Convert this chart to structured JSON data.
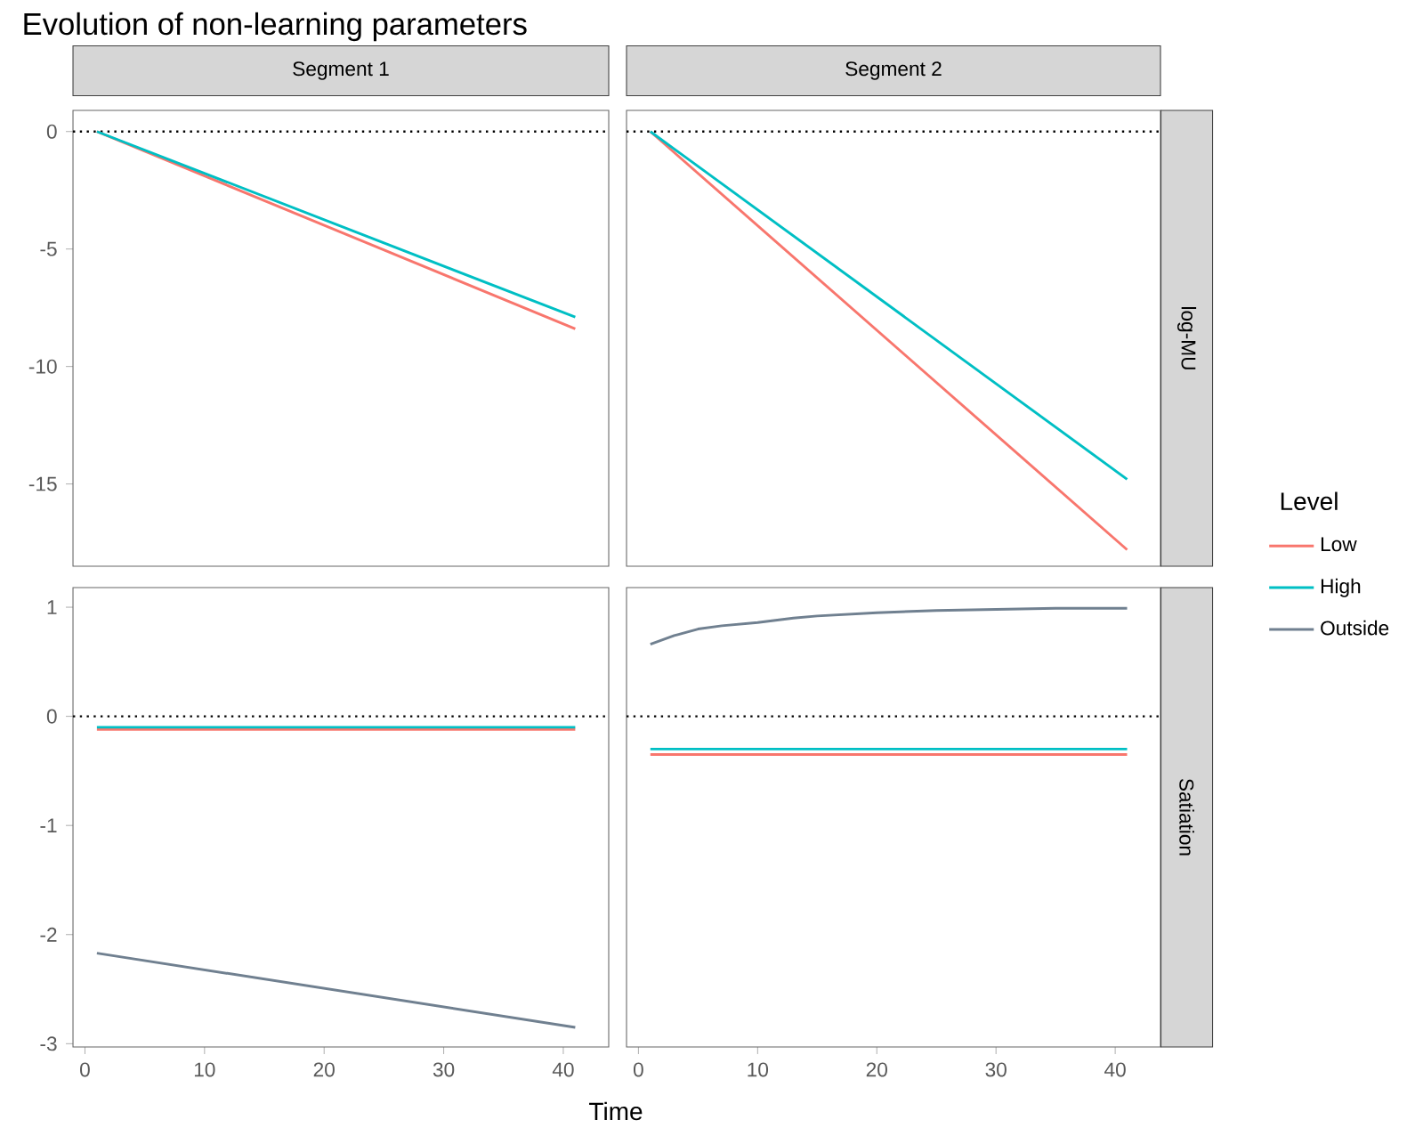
{
  "chart_data": [
    {
      "type": "line",
      "title": "Evolution of non-learning parameters",
      "subtitle": "Segment 1",
      "xlim": [
        -1,
        43.8
      ],
      "ylim": [
        -18.5,
        0.9
      ],
      "yticks": [
        0,
        -5,
        -10,
        -15
      ],
      "tick_labels": "y",
      "series": [
        {
          "color": "#f8766d",
          "x": [
            1,
            41
          ],
          "values": [
            0,
            -8.4
          ]
        },
        {
          "color": "#00bfc4",
          "x": [
            1,
            41
          ],
          "values": [
            0,
            -7.9
          ]
        }
      ],
      "ref_lines": [
        {
          "axis": "y",
          "value": 0,
          "color": "#000000",
          "line_style": "dotted"
        }
      ]
    },
    {
      "type": "line",
      "subtitle": "Segment 2",
      "y2label": "log-MU",
      "xlim": [
        -1,
        43.8
      ],
      "ylim": [
        -18.5,
        0.9
      ],
      "tick_labels": false,
      "series": [
        {
          "color": "#f8766d",
          "x": [
            1,
            41
          ],
          "values": [
            0,
            -17.8
          ]
        },
        {
          "color": "#00bfc4",
          "x": [
            1,
            41
          ],
          "values": [
            0,
            -14.8
          ]
        }
      ],
      "ref_lines": [
        {
          "axis": "y",
          "value": 0,
          "color": "#000000",
          "line_style": "dotted"
        }
      ]
    },
    {
      "type": "line",
      "xlabel": "Time",
      "xlim": [
        -1,
        43.8
      ],
      "xticks": [
        0,
        10,
        20,
        30,
        40
      ],
      "ylim": [
        -3.03,
        1.18
      ],
      "yticks": [
        1,
        0,
        -1,
        -2,
        -3
      ],
      "series": [
        {
          "color": "#f8766d",
          "x": [
            1,
            41
          ],
          "values": [
            -0.12,
            -0.12
          ]
        },
        {
          "color": "#00bfc4",
          "x": [
            1,
            41
          ],
          "values": [
            -0.1,
            -0.1
          ]
        },
        {
          "color": "#708090",
          "x": [
            1,
            41
          ],
          "values": [
            -2.17,
            -2.85
          ]
        }
      ],
      "ref_lines": [
        {
          "axis": "y",
          "value": 0,
          "color": "#000000",
          "line_style": "dotted"
        }
      ]
    },
    {
      "type": "line",
      "y2label": "Satiation",
      "xlim": [
        -1,
        43.8
      ],
      "xticks": [
        0,
        10,
        20,
        30,
        40
      ],
      "ylim": [
        -3.03,
        1.18
      ],
      "tick_labels": "x",
      "legend": "right",
      "legend_title": "Level",
      "series": [
        {
          "name": "Low",
          "color": "#f8766d",
          "x": [
            1,
            41
          ],
          "values": [
            -0.35,
            -0.35
          ]
        },
        {
          "name": "High",
          "color": "#00bfc4",
          "x": [
            1,
            41
          ],
          "values": [
            -0.3,
            -0.3
          ]
        },
        {
          "name": "Outside",
          "color": "#708090",
          "x": [
            1,
            3,
            5,
            7,
            10,
            13,
            15,
            20,
            25,
            30,
            35,
            41
          ],
          "values": [
            0.66,
            0.74,
            0.8,
            0.83,
            0.86,
            0.9,
            0.92,
            0.95,
            0.97,
            0.98,
            0.99,
            0.99
          ]
        }
      ],
      "ref_lines": [
        {
          "axis": "y",
          "value": 0,
          "color": "#000000",
          "line_style": "dotted"
        }
      ]
    }
  ]
}
